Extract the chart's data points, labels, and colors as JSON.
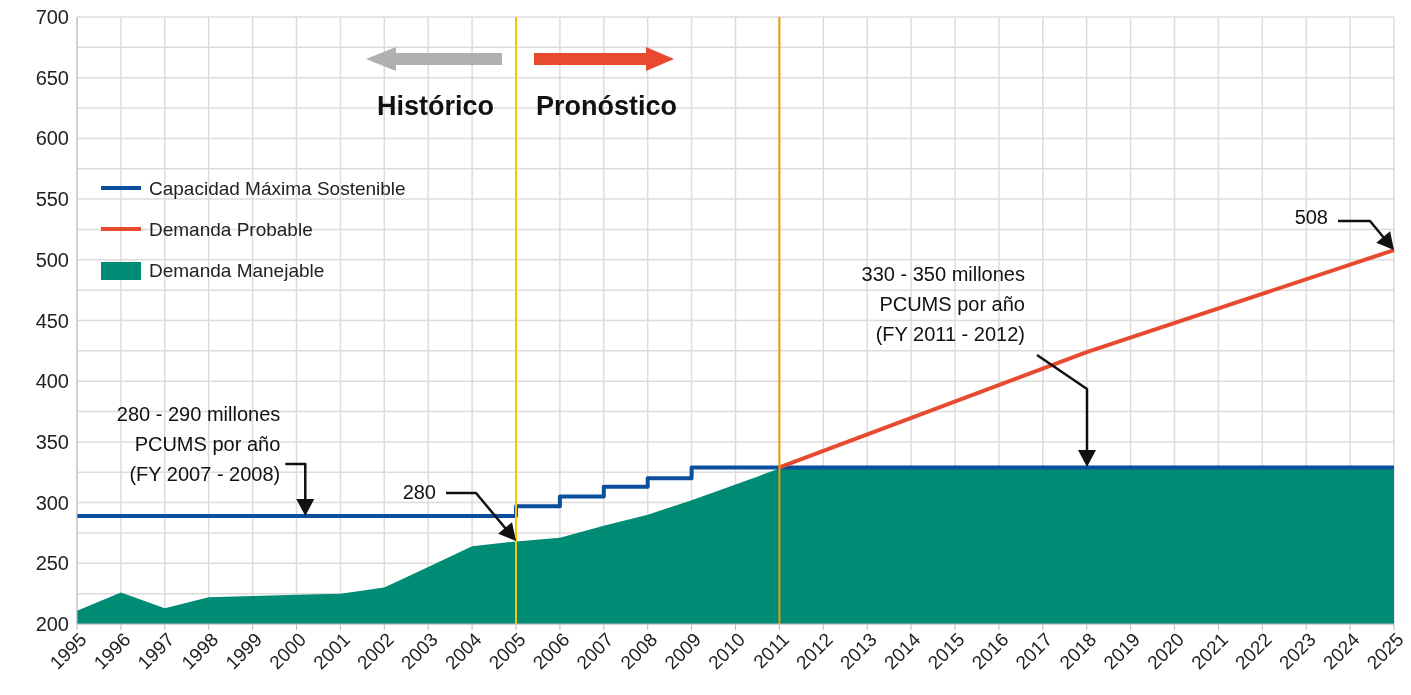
{
  "chart_data": {
    "type": "line",
    "x": [
      1995,
      1996,
      1997,
      1998,
      1999,
      2000,
      2001,
      2002,
      2003,
      2004,
      2005,
      2006,
      2007,
      2008,
      2009,
      2010,
      2011,
      2012,
      2013,
      2014,
      2015,
      2016,
      2017,
      2018,
      2019,
      2020,
      2021,
      2022,
      2023,
      2024,
      2025
    ],
    "series": [
      {
        "name": "Capacidad Máxima Sostenible",
        "type": "step",
        "color": "#0b4f9c",
        "values": [
          289,
          289,
          289,
          289,
          289,
          289,
          289,
          289,
          289,
          289,
          289,
          297,
          305,
          313,
          320,
          329,
          329,
          329,
          329,
          329,
          329,
          329,
          329,
          329,
          329,
          329,
          329,
          329,
          329,
          329,
          329
        ]
      },
      {
        "name": "Demanda Probable",
        "type": "line",
        "color": "#e84a30",
        "x": [
          2011,
          2018,
          2025
        ],
        "values": [
          329,
          424,
          508
        ]
      },
      {
        "name": "Demanda Manejable",
        "type": "area",
        "color": "#008c74",
        "values": [
          211,
          226,
          213,
          222,
          223,
          224,
          225,
          230,
          247,
          264,
          268,
          271,
          281,
          290,
          302,
          315,
          328,
          328,
          328,
          328,
          328,
          328,
          328,
          328,
          328,
          328,
          328,
          328,
          328,
          328,
          328
        ]
      }
    ],
    "xlim": [
      1995,
      2025
    ],
    "xticks": [
      1995,
      1996,
      1997,
      1998,
      1999,
      2000,
      2001,
      2002,
      2003,
      2004,
      2005,
      2006,
      2007,
      2008,
      2009,
      2010,
      2011,
      2012,
      2013,
      2014,
      2015,
      2016,
      2017,
      2018,
      2019,
      2020,
      2021,
      2022,
      2023,
      2024,
      2025
    ],
    "ylim": [
      200,
      700
    ],
    "yticks": [
      200,
      {
        "value": 225,
        "label": null
      },
      250,
      {
        "value": 275,
        "label": null
      },
      300,
      {
        "value": 325,
        "label": null
      },
      350,
      {
        "value": 375,
        "label": null
      },
      400,
      {
        "value": 425,
        "label": null
      },
      450,
      {
        "value": 475,
        "label": null
      },
      500,
      {
        "value": 525,
        "label": null
      },
      550,
      {
        "value": 575,
        "label": null
      },
      600,
      {
        "value": 625,
        "label": null
      },
      650,
      {
        "value": 675,
        "label": null
      },
      700
    ],
    "grid": true,
    "legend": "top left",
    "ref_lines": [
      {
        "axis": "x",
        "value": 2005,
        "color": "#f7c600"
      },
      {
        "axis": "x",
        "value": 2011,
        "color": "#f09a00"
      }
    ],
    "annotations": [
      "Histórico",
      "Pronóstico",
      {
        "text": "280 - 290 millones\nPCUMS por año\n(FY 2007 - 2008)",
        "x": 2000.2,
        "y": 289
      },
      "280",
      "330 - 350 millones\nPCUMS por año\n(FY 2011 - 2012)",
      "508"
    ]
  }
}
